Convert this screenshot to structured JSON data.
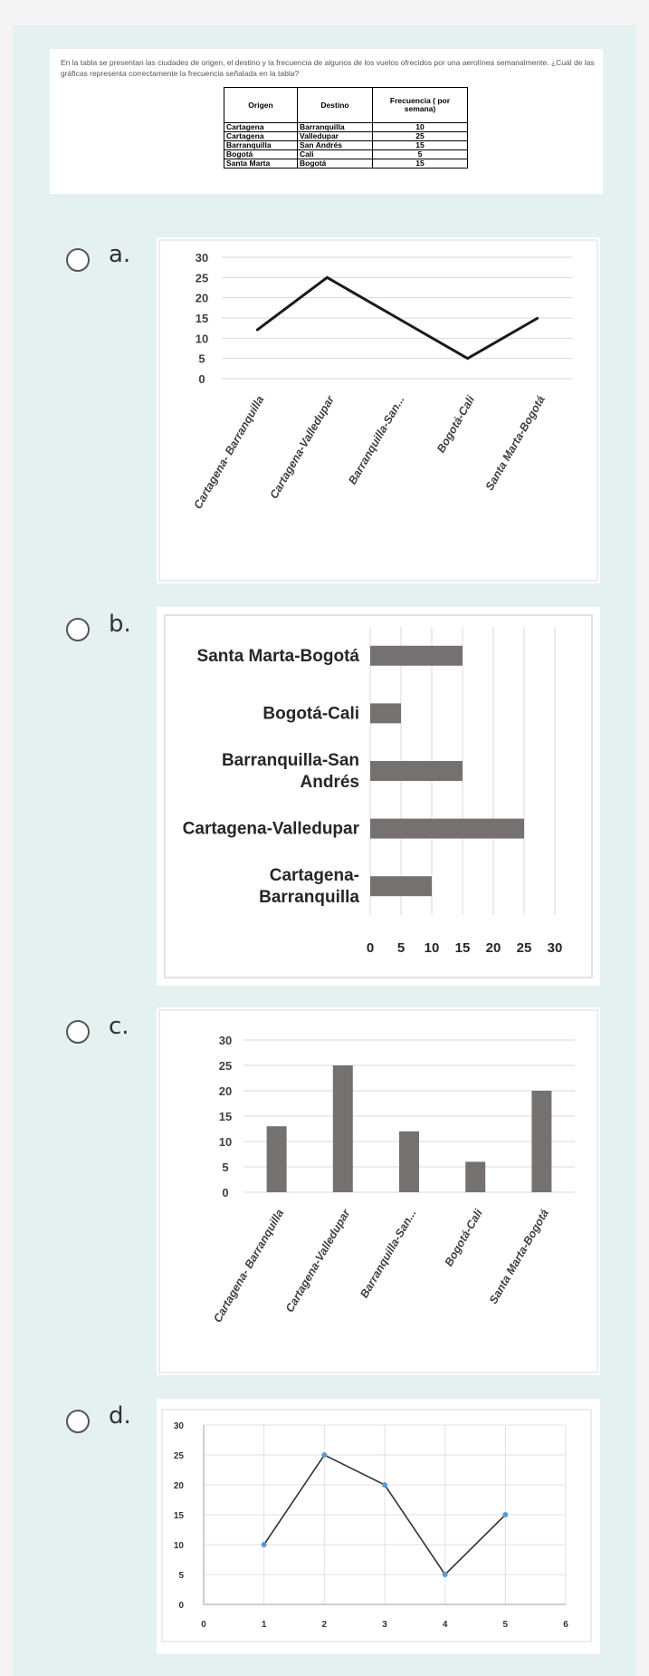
{
  "question": {
    "text": "En la tabla se presentan las ciudades de origen, el destino y la frecuencia de algunos de los vuelos ofrecidos por una aerolínea semanalmente. ¿Cuál de las gráficas representa correctamente la frecuencia señalada en la tabla?",
    "table": {
      "headers": [
        "Origen",
        "Destino",
        "Frecuencia ( por semana)"
      ],
      "rows": [
        [
          "Cartagena",
          "Barranquilla",
          "10"
        ],
        [
          "Cartagena",
          "Valledupar",
          "25"
        ],
        [
          "Barranquilla",
          "San Andrés",
          "15"
        ],
        [
          "Bogotá",
          "Cali",
          "5"
        ],
        [
          "Santa Marta",
          "Bogotá",
          "15"
        ]
      ]
    }
  },
  "options": [
    {
      "letter": "a.",
      "label": "a"
    },
    {
      "letter": "b.",
      "label": "b"
    },
    {
      "letter": "c.",
      "label": "c"
    },
    {
      "letter": "d.",
      "label": "d"
    }
  ],
  "chart_data": [
    {
      "type": "line",
      "categories": [
        "Cartagena- Barranquilla",
        "Cartagena-Valledupar",
        "Barranquilla-San...",
        "Bogotá-Cali",
        "Santa Marta-Bogotá"
      ],
      "values": [
        12,
        25,
        15,
        5,
        15
      ],
      "yticks": [
        "0",
        "5",
        "10",
        "15",
        "20",
        "25",
        "30"
      ],
      "ylim": [
        0,
        30
      ],
      "grid": true,
      "color": "#1a1a1a"
    },
    {
      "type": "bar",
      "orientation": "horizontal",
      "categories": [
        "Santa Marta-Bogotá",
        "Bogotá-Cali",
        "Barranquilla-San Andrés",
        "Cartagena-Valledupar",
        "Cartagena- Barranquilla"
      ],
      "values": [
        15,
        5,
        15,
        25,
        10
      ],
      "xticks": [
        "0",
        "5",
        "10",
        "15",
        "20",
        "25",
        "30"
      ],
      "xlim": [
        0,
        30
      ],
      "grid": true,
      "color": "#757171"
    },
    {
      "type": "bar",
      "categories": [
        "Cartagena- Barranquilla",
        "Cartagena-Valledupar",
        "Barranquilla-San...",
        "Bogotá-Cali",
        "Santa Marta-Bogotá"
      ],
      "values": [
        13,
        25,
        12,
        6,
        20
      ],
      "yticks": [
        "0",
        "5",
        "10",
        "15",
        "20",
        "25",
        "30"
      ],
      "ylim": [
        0,
        30
      ],
      "grid": true,
      "color": "#757171"
    },
    {
      "type": "line",
      "x": [
        1,
        2,
        3,
        4,
        5
      ],
      "values": [
        10,
        25,
        20,
        5,
        15
      ],
      "xticks": [
        "0",
        "1",
        "2",
        "3",
        "4",
        "5",
        "6"
      ],
      "yticks": [
        "0",
        "5",
        "10",
        "15",
        "20",
        "25",
        "30"
      ],
      "xlim": [
        0,
        6
      ],
      "ylim": [
        0,
        30
      ],
      "grid": true,
      "color": "#333333",
      "marker_color": "#5b9bd5"
    }
  ]
}
